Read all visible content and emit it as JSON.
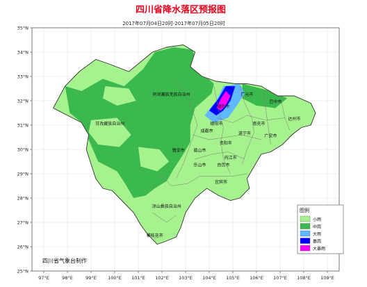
{
  "title": "四川省降水落区预报图",
  "subtitle": "2017年07月04日20时-2017年07月05日20时",
  "credit": "四川省气象台制作",
  "axes": {
    "lon_ticks": [
      "97°E",
      "98°E",
      "99°E",
      "100°E",
      "101°E",
      "102°E",
      "103°E",
      "104°E",
      "105°E",
      "106°E",
      "107°E",
      "108°E",
      "109°E"
    ],
    "lat_ticks": [
      "35°N",
      "34°N",
      "33°N",
      "32°N",
      "31°N",
      "30°N",
      "29°N",
      "28°N",
      "27°N",
      "26°N",
      "25°N"
    ]
  },
  "legend": {
    "title": "图例",
    "items": [
      {
        "label": "小雨",
        "color": "#a6f28f"
      },
      {
        "label": "中雨",
        "color": "#3cb94e"
      },
      {
        "label": "大雨",
        "color": "#61b8ff"
      },
      {
        "label": "暴雨",
        "color": "#0000fe"
      },
      {
        "label": "大暴雨",
        "color": "#fa00fa"
      }
    ]
  },
  "places": [
    {
      "name": "阿坝藏族羌族自治州",
      "lon": 102.4,
      "lat": 32.2
    },
    {
      "name": "甘孜藏族自治州",
      "lon": 99.8,
      "lat": 31.0
    },
    {
      "name": "凉山彝族自治州",
      "lon": 102.2,
      "lat": 27.6
    },
    {
      "name": "攀枝花市",
      "lon": 101.7,
      "lat": 26.4
    },
    {
      "name": "雅安市",
      "lon": 102.7,
      "lat": 29.9
    },
    {
      "name": "眉山市",
      "lon": 103.6,
      "lat": 29.9
    },
    {
      "name": "乐山市",
      "lon": 103.6,
      "lat": 29.3
    },
    {
      "name": "成都市",
      "lon": 103.9,
      "lat": 30.7
    },
    {
      "name": "德阳市",
      "lon": 104.3,
      "lat": 31.0
    },
    {
      "name": "绵阳市",
      "lon": 104.6,
      "lat": 31.7
    },
    {
      "name": "广元市",
      "lon": 105.6,
      "lat": 32.2
    },
    {
      "name": "巴中市",
      "lon": 106.8,
      "lat": 31.9
    },
    {
      "name": "达州市",
      "lon": 107.6,
      "lat": 31.2
    },
    {
      "name": "南充市",
      "lon": 106.1,
      "lat": 31.0
    },
    {
      "name": "遂宁市",
      "lon": 105.5,
      "lat": 30.6
    },
    {
      "name": "广安市",
      "lon": 106.6,
      "lat": 30.5
    },
    {
      "name": "资阳市",
      "lon": 104.7,
      "lat": 30.2
    },
    {
      "name": "内江市",
      "lon": 104.9,
      "lat": 29.6
    },
    {
      "name": "自贡市",
      "lon": 104.6,
      "lat": 29.3
    },
    {
      "name": "宜宾市",
      "lon": 104.5,
      "lat": 28.6
    }
  ]
}
